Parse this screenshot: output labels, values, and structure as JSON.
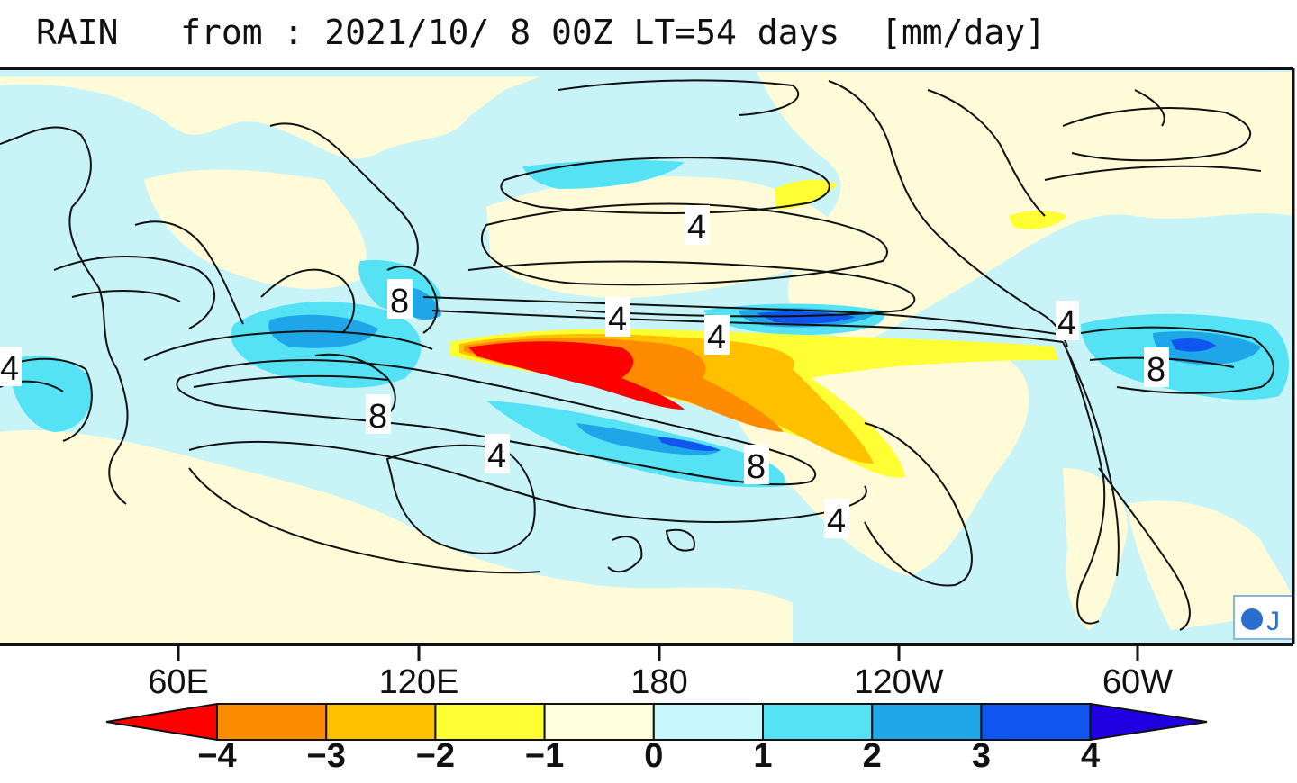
{
  "title": "RAIN   from : 2021/10/ 8 00Z LT=54 days  [mm/day]",
  "variable": "RAIN",
  "initial_time": "2021/10/ 8 00Z",
  "lead_time": "LT=54 days",
  "units": "[mm/day]",
  "longitude_ticks": [
    "60E",
    "120E",
    "180",
    "120W",
    "60W"
  ],
  "contour_labels": [
    "4",
    "8"
  ],
  "colorbar": {
    "ticks": [
      "−4",
      "−3",
      "−2",
      "−1",
      "0",
      "1",
      "2",
      "3",
      "4"
    ],
    "colors": [
      "#ff0000",
      "#ff8c00",
      "#ffc000",
      "#ffff33",
      "#ffffdc",
      "#c6f7fb",
      "#55e2f5",
      "#1fa6e8",
      "#1155f0",
      "#2000e0"
    ]
  },
  "logo_text": "J"
}
